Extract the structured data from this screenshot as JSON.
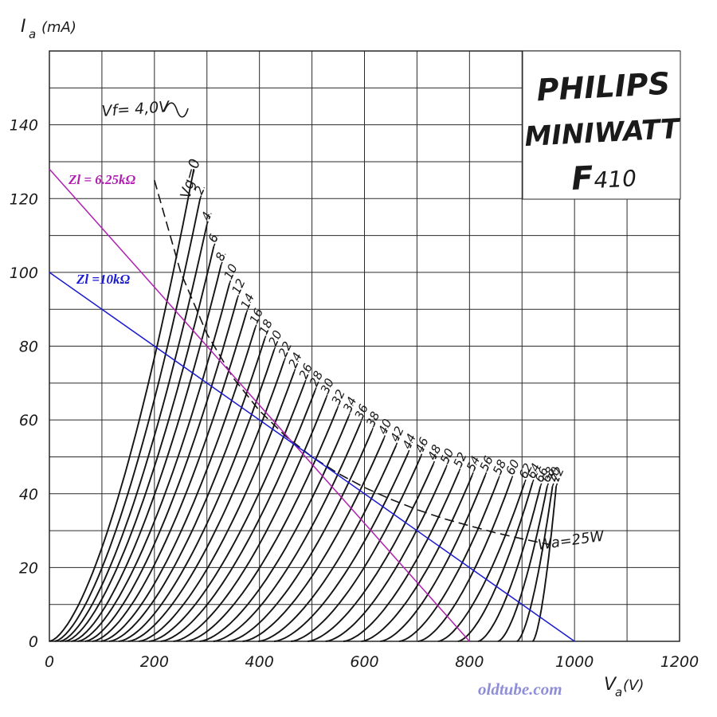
{
  "chart_data": {
    "type": "line",
    "title": "PHILIPS MINIWATT F410",
    "brand_line1": "PHILIPS",
    "brand_line2": "MINIWATT",
    "tube_letter": "F",
    "tube_number": "410",
    "xlabel_main": "V",
    "xlabel_sub": "a",
    "xlabel_unit": "(V)",
    "ylabel_main": "I",
    "ylabel_sub": "a",
    "ylabel_unit": "(mA)",
    "xlim": [
      0,
      1200
    ],
    "ylim": [
      0,
      160
    ],
    "x_ticks": [
      "0",
      "200",
      "400",
      "600",
      "800",
      "1000",
      "1200"
    ],
    "y_ticks": [
      "0",
      "20",
      "40",
      "60",
      "80",
      "100",
      "120",
      "140"
    ],
    "filament_label": "Vf= 4,0V",
    "grid_voltage_label": "Vg=0",
    "grid_voltages": [
      "0",
      "2",
      "4",
      "6",
      "8",
      "10",
      "12",
      "14",
      "16",
      "18",
      "20",
      "22",
      "24",
      "26",
      "28",
      "30",
      "32",
      "34",
      "36",
      "38",
      "40",
      "42",
      "44",
      "46",
      "48",
      "50",
      "52",
      "54",
      "56",
      "58",
      "60",
      "62",
      "64",
      "66",
      "68",
      "70",
      "72"
    ],
    "plate_curves": {
      "start_x": [
        0,
        10,
        20,
        30,
        42,
        54,
        68,
        82,
        98,
        114,
        132,
        150,
        170,
        190,
        212,
        236,
        260,
        286,
        312,
        340,
        368,
        398,
        428,
        460,
        492,
        526,
        560,
        594,
        630,
        666,
        702,
        740,
        778,
        816,
        854,
        890,
        920
      ],
      "end_point_x": [
        275,
        287,
        300,
        313,
        327,
        343,
        358,
        375,
        392,
        410,
        428,
        447,
        466,
        486,
        506,
        527,
        548,
        570,
        592,
        614,
        637,
        660,
        683,
        707,
        731,
        755,
        780,
        805,
        830,
        855,
        880,
        905,
        920,
        935,
        948,
        958,
        965
      ],
      "end_point_y": [
        128,
        120,
        113,
        107,
        102,
        97,
        93,
        89,
        85,
        82,
        79,
        76,
        73,
        70,
        68,
        66,
        63,
        61,
        59,
        57,
        55,
        53,
        51,
        50,
        48,
        47,
        46,
        45,
        45,
        44,
        44,
        43,
        43,
        42,
        42,
        42,
        42
      ]
    },
    "max_dissipation": {
      "label": "Wa=25W",
      "watts": 25,
      "x": [
        200,
        250,
        300,
        350,
        400,
        450,
        500,
        550,
        600,
        650,
        700,
        750,
        800,
        850,
        900,
        950
      ],
      "y": [
        125,
        100,
        83.3,
        71.4,
        62.5,
        55.6,
        50,
        45.5,
        41.7,
        38.5,
        35.7,
        33.3,
        31.3,
        29.4,
        27.8,
        26.3
      ]
    },
    "load_lines": [
      {
        "name": "Zl = 6.25kΩ",
        "x": [
          0,
          800
        ],
        "y": [
          128,
          0
        ],
        "color": "#b020b0"
      },
      {
        "name": "Zl =10kΩ",
        "x": [
          0,
          1000
        ],
        "y": [
          100,
          0
        ],
        "color": "#1a1ad0"
      }
    ],
    "grid": true,
    "source_text": "oldtube.com"
  }
}
